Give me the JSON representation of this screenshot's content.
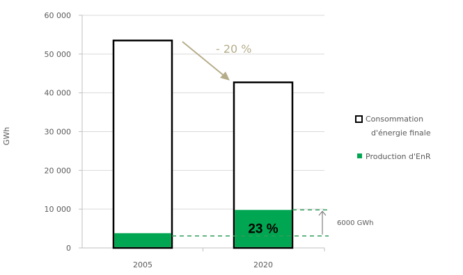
{
  "chart_data": {
    "type": "bar",
    "categories": [
      "2005",
      "2020"
    ],
    "series": [
      {
        "name": "Consommation d'énergie finale",
        "values": [
          53500,
          42700
        ],
        "color": "#ffffff",
        "stroke": "#000000"
      },
      {
        "name": "Production d'EnR",
        "values": [
          3800,
          9800
        ],
        "color": "#00a651"
      }
    ],
    "legend": {
      "items": [
        {
          "line1": "Consommation",
          "line2": "d'énergie finale",
          "swatch": "outline"
        },
        {
          "line1": "Production d'EnR",
          "line2": "",
          "swatch": "filled"
        }
      ],
      "position": "right"
    },
    "ylabel": "GWh",
    "ylim": [
      0,
      60000
    ],
    "yticks": [
      {
        "value": 0,
        "label": "0"
      },
      {
        "value": 10000,
        "label": "10 000"
      },
      {
        "value": 20000,
        "label": "20 000"
      },
      {
        "value": 30000,
        "label": "30 000"
      },
      {
        "value": 40000,
        "label": "40 000"
      },
      {
        "value": 50000,
        "label": "50 000"
      },
      {
        "value": 60000,
        "label": "60 000"
      }
    ],
    "grid": true,
    "annotations": {
      "reduction_label": "- 20 %",
      "share_label": "23 %",
      "gap_label": "6000 GWh"
    },
    "colors": {
      "grid": "#d9d9d9",
      "axis": "#bfbfbf",
      "tick_text": "#595959",
      "arrow": "#b5ad8a",
      "renewable": "#00a651",
      "dashed": "#2e9e5b"
    }
  }
}
